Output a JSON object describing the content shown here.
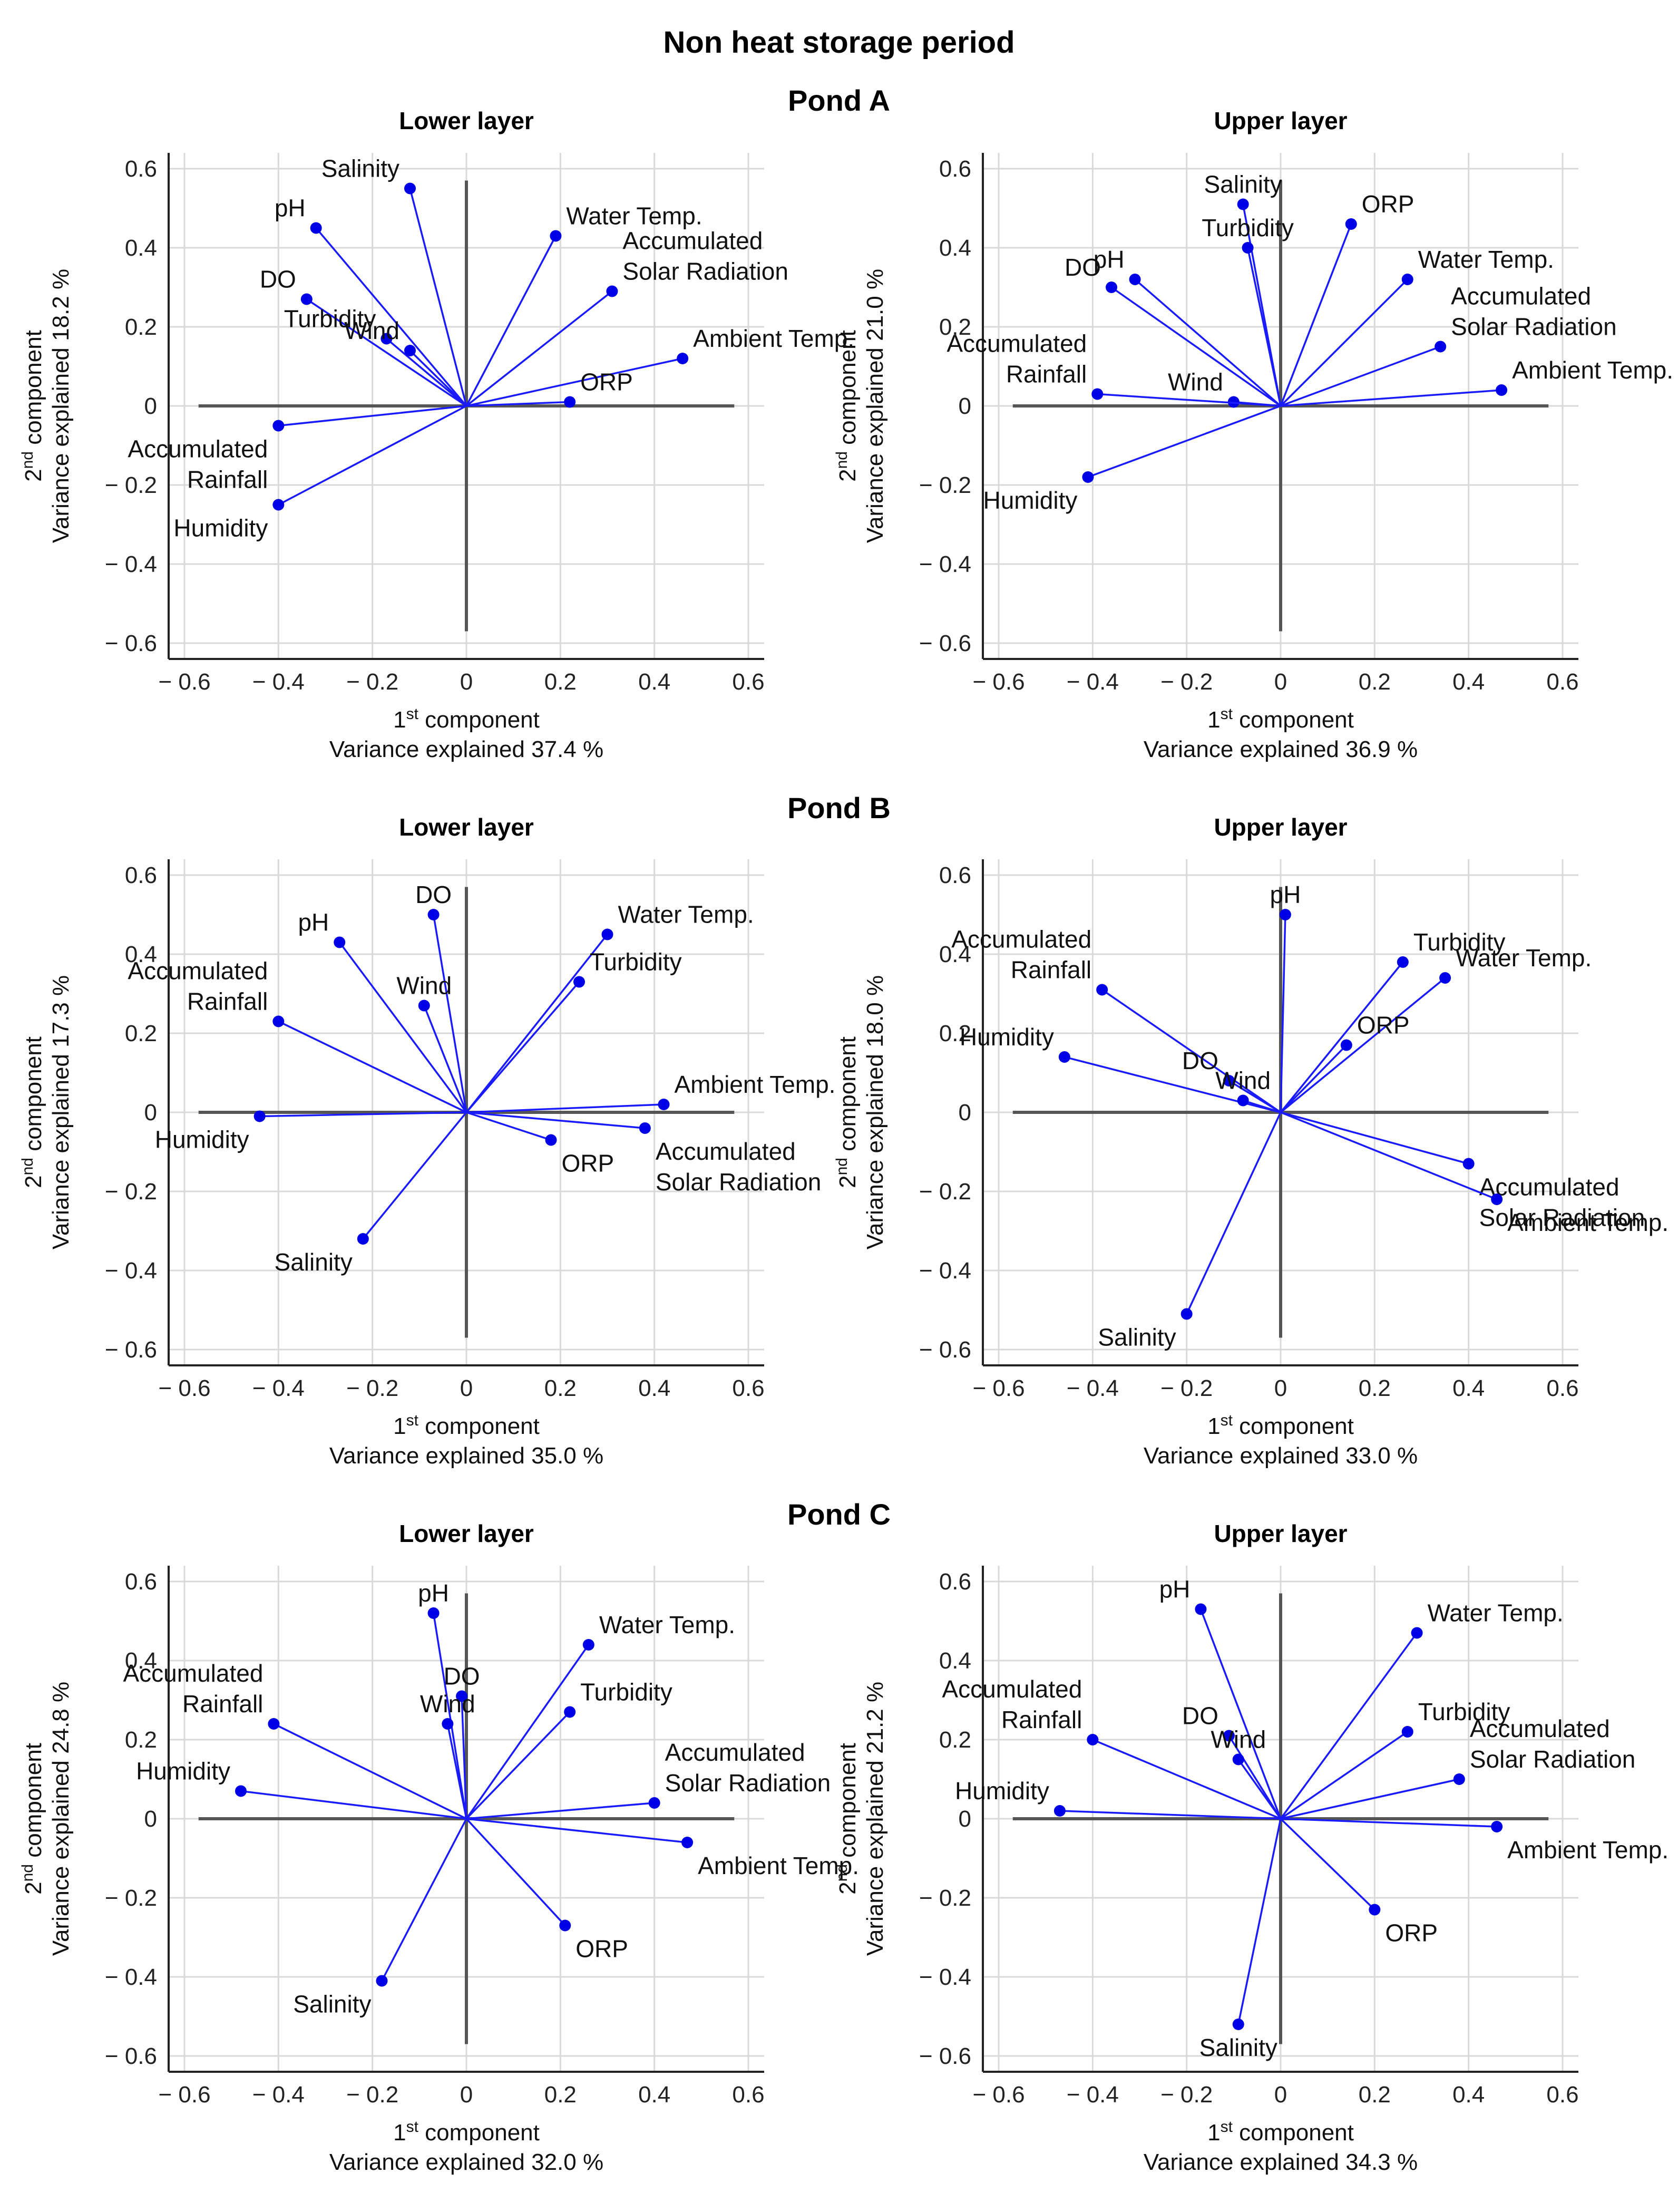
{
  "figure": {
    "title": "Non heat storage period",
    "x_axis_label": "component",
    "x_ordinal": "1",
    "x_ordinal_sup": "st",
    "y_axis_label": "component",
    "y_ordinal": "2",
    "y_ordinal_sup": "nd",
    "variance_prefix": "Variance explained",
    "percent_unit": "%",
    "tick_labels": [
      "− 0.6",
      "− 0.4",
      "− 0.2",
      "0",
      "0.2",
      "0.4",
      "0.6"
    ],
    "colors": {
      "vector": "#1a1aff",
      "point": "#0000e6",
      "axis_zero": "#555555",
      "grid": "#d9d9d9"
    }
  },
  "chart_data": [
    {
      "type": "scatter",
      "subtype": "pca-biplot",
      "pond": "Pond A",
      "title": "Lower layer",
      "xlabel": "1st component",
      "ylabel": "2nd component",
      "x_variance": "37.4",
      "y_variance": "18.2",
      "xlim": [
        -0.6,
        0.6
      ],
      "ylim": [
        -0.6,
        0.6
      ],
      "points": [
        {
          "label": "pH",
          "x": -0.32,
          "y": 0.45
        },
        {
          "label": "Salinity",
          "x": -0.12,
          "y": 0.55
        },
        {
          "label": "DO",
          "x": -0.34,
          "y": 0.27
        },
        {
          "label": "Turbidity",
          "x": -0.17,
          "y": 0.17
        },
        {
          "label": "Wind",
          "x": -0.12,
          "y": 0.14
        },
        {
          "label": "Water Temp.",
          "x": 0.19,
          "y": 0.43
        },
        {
          "label": "Accumulated Solar Radiation",
          "x": 0.31,
          "y": 0.29
        },
        {
          "label": "Ambient Temp.",
          "x": 0.46,
          "y": 0.12
        },
        {
          "label": "ORP",
          "x": 0.22,
          "y": 0.01
        },
        {
          "label": "Accumulated Rainfall",
          "x": -0.4,
          "y": -0.05
        },
        {
          "label": "Humidity",
          "x": -0.4,
          "y": -0.25
        }
      ]
    },
    {
      "type": "scatter",
      "subtype": "pca-biplot",
      "pond": "Pond A",
      "title": "Upper layer",
      "xlabel": "1st component",
      "ylabel": "2nd component",
      "x_variance": "36.9",
      "y_variance": "21.0",
      "xlim": [
        -0.6,
        0.6
      ],
      "ylim": [
        -0.6,
        0.6
      ],
      "points": [
        {
          "label": "Salinity",
          "x": -0.08,
          "y": 0.51
        },
        {
          "label": "ORP",
          "x": 0.15,
          "y": 0.46
        },
        {
          "label": "Turbidity",
          "x": -0.07,
          "y": 0.4
        },
        {
          "label": "pH",
          "x": -0.31,
          "y": 0.32
        },
        {
          "label": "DO",
          "x": -0.36,
          "y": 0.3
        },
        {
          "label": "Water Temp.",
          "x": 0.27,
          "y": 0.32
        },
        {
          "label": "Accumulated Solar Radiation",
          "x": 0.34,
          "y": 0.15
        },
        {
          "label": "Wind",
          "x": -0.1,
          "y": 0.01
        },
        {
          "label": "Ambient Temp.",
          "x": 0.47,
          "y": 0.04
        },
        {
          "label": "Accumulated Rainfall",
          "x": -0.39,
          "y": 0.03
        },
        {
          "label": "Humidity",
          "x": -0.41,
          "y": -0.18
        }
      ]
    },
    {
      "type": "scatter",
      "subtype": "pca-biplot",
      "pond": "Pond B",
      "title": "Lower layer",
      "xlabel": "1st component",
      "ylabel": "2nd component",
      "x_variance": "35.0",
      "y_variance": "17.3",
      "xlim": [
        -0.6,
        0.6
      ],
      "ylim": [
        -0.6,
        0.6
      ],
      "points": [
        {
          "label": "DO",
          "x": -0.07,
          "y": 0.5
        },
        {
          "label": "pH",
          "x": -0.27,
          "y": 0.43
        },
        {
          "label": "Water Temp.",
          "x": 0.3,
          "y": 0.45
        },
        {
          "label": "Turbidity",
          "x": 0.24,
          "y": 0.33
        },
        {
          "label": "Wind",
          "x": -0.09,
          "y": 0.27
        },
        {
          "label": "Accumulated Rainfall",
          "x": -0.4,
          "y": 0.23
        },
        {
          "label": "Humidity",
          "x": -0.44,
          "y": -0.01
        },
        {
          "label": "Ambient Temp.",
          "x": 0.42,
          "y": 0.02
        },
        {
          "label": "Accumulated Solar Radiation",
          "x": 0.38,
          "y": -0.04
        },
        {
          "label": "ORP",
          "x": 0.18,
          "y": -0.07
        },
        {
          "label": "Salinity",
          "x": -0.22,
          "y": -0.32
        }
      ]
    },
    {
      "type": "scatter",
      "subtype": "pca-biplot",
      "pond": "Pond B",
      "title": "Upper layer",
      "xlabel": "1st component",
      "ylabel": "2nd component",
      "x_variance": "33.0",
      "y_variance": "18.0",
      "xlim": [
        -0.6,
        0.6
      ],
      "ylim": [
        -0.6,
        0.6
      ],
      "points": [
        {
          "label": "pH",
          "x": 0.01,
          "y": 0.5
        },
        {
          "label": "Turbidity",
          "x": 0.26,
          "y": 0.38
        },
        {
          "label": "Water Temp.",
          "x": 0.35,
          "y": 0.34
        },
        {
          "label": "Accumulated Rainfall",
          "x": -0.38,
          "y": 0.31
        },
        {
          "label": "ORP",
          "x": 0.14,
          "y": 0.17
        },
        {
          "label": "Humidity",
          "x": -0.46,
          "y": 0.14
        },
        {
          "label": "DO",
          "x": -0.11,
          "y": 0.08
        },
        {
          "label": "Wind",
          "x": -0.08,
          "y": 0.03
        },
        {
          "label": "Accumulated Solar Radiation",
          "x": 0.4,
          "y": -0.13
        },
        {
          "label": "Ambient Temp.",
          "x": 0.46,
          "y": -0.22
        },
        {
          "label": "Salinity",
          "x": -0.2,
          "y": -0.51
        }
      ]
    },
    {
      "type": "scatter",
      "subtype": "pca-biplot",
      "pond": "Pond C",
      "title": "Lower layer",
      "xlabel": "1st component",
      "ylabel": "2nd component",
      "x_variance": "32.0",
      "y_variance": "24.8",
      "xlim": [
        -0.6,
        0.6
      ],
      "ylim": [
        -0.6,
        0.6
      ],
      "points": [
        {
          "label": "pH",
          "x": -0.07,
          "y": 0.52
        },
        {
          "label": "Water Temp.",
          "x": 0.26,
          "y": 0.44
        },
        {
          "label": "DO",
          "x": -0.01,
          "y": 0.31
        },
        {
          "label": "Turbidity",
          "x": 0.22,
          "y": 0.27
        },
        {
          "label": "Wind",
          "x": -0.04,
          "y": 0.24
        },
        {
          "label": "Accumulated Rainfall",
          "x": -0.41,
          "y": 0.24
        },
        {
          "label": "Humidity",
          "x": -0.48,
          "y": 0.07
        },
        {
          "label": "Accumulated Solar Radiation",
          "x": 0.4,
          "y": 0.04
        },
        {
          "label": "Ambient Temp.",
          "x": 0.47,
          "y": -0.06
        },
        {
          "label": "ORP",
          "x": 0.21,
          "y": -0.27
        },
        {
          "label": "Salinity",
          "x": -0.18,
          "y": -0.41
        }
      ]
    },
    {
      "type": "scatter",
      "subtype": "pca-biplot",
      "pond": "Pond C",
      "title": "Upper layer",
      "xlabel": "1st component",
      "ylabel": "2nd component",
      "x_variance": "34.3",
      "y_variance": "21.2",
      "xlim": [
        -0.6,
        0.6
      ],
      "ylim": [
        -0.6,
        0.6
      ],
      "points": [
        {
          "label": "pH",
          "x": -0.17,
          "y": 0.53
        },
        {
          "label": "Water Temp.",
          "x": 0.29,
          "y": 0.47
        },
        {
          "label": "Turbidity",
          "x": 0.27,
          "y": 0.22
        },
        {
          "label": "DO",
          "x": -0.11,
          "y": 0.21
        },
        {
          "label": "Accumulated Rainfall",
          "x": -0.4,
          "y": 0.2
        },
        {
          "label": "Wind",
          "x": -0.09,
          "y": 0.15
        },
        {
          "label": "Accumulated Solar Radiation",
          "x": 0.38,
          "y": 0.1
        },
        {
          "label": "Humidity",
          "x": -0.47,
          "y": 0.02
        },
        {
          "label": "Ambient Temp.",
          "x": 0.46,
          "y": -0.02
        },
        {
          "label": "ORP",
          "x": 0.2,
          "y": -0.23
        },
        {
          "label": "Salinity",
          "x": -0.09,
          "y": -0.52
        }
      ]
    }
  ]
}
